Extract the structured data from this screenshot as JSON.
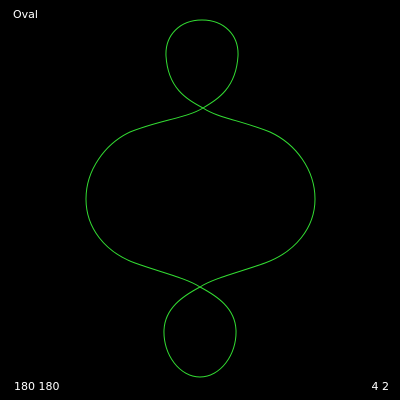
{
  "title": "Oval",
  "params_text": "180 180",
  "ratio_text": "4 2",
  "colors": {
    "background": "#000000",
    "curve": "#33dd33",
    "text": "#ffffff"
  }
}
